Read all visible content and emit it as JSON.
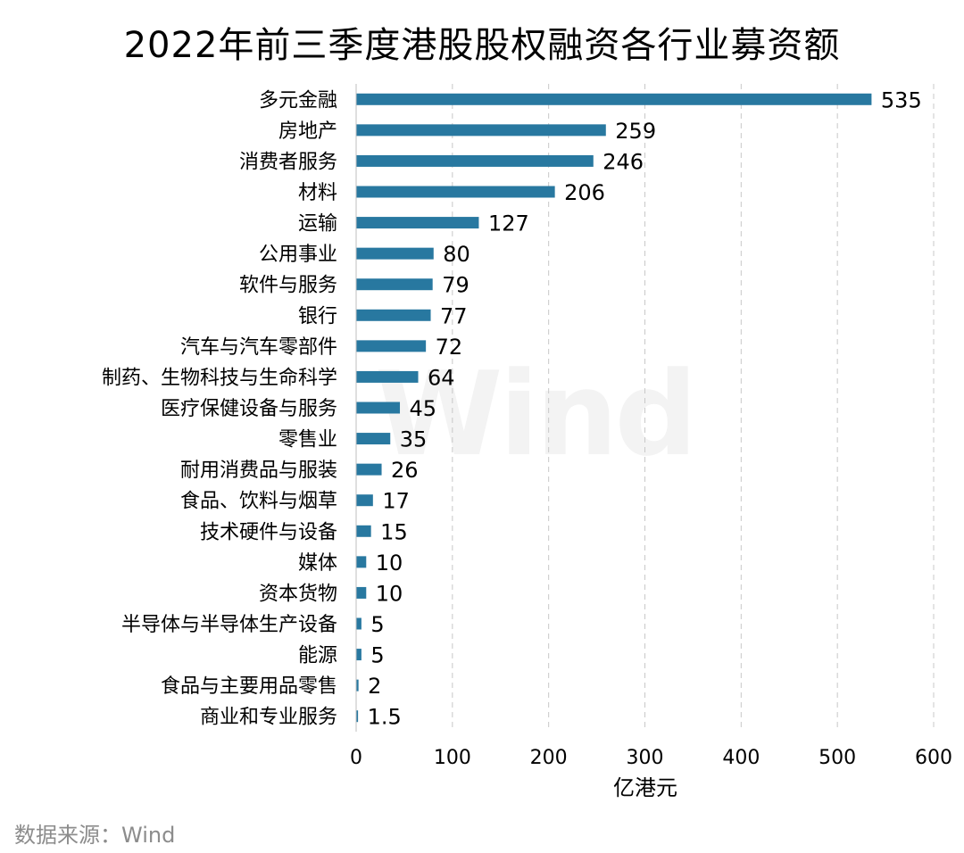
{
  "chart_data": {
    "type": "bar",
    "orientation": "horizontal",
    "title": "2022年前三季度港股股权融资各行业募资额",
    "xlabel": "亿港元",
    "ylabel": "",
    "xlim": [
      0,
      600
    ],
    "xticks": [
      0,
      100,
      200,
      300,
      400,
      500,
      600
    ],
    "grid": "vertical dashed",
    "legend": "none",
    "bar_color": "#2878a0",
    "categories": [
      "多元金融",
      "房地产",
      "消费者服务",
      "材料",
      "运输",
      "公用事业",
      "软件与服务",
      "银行",
      "汽车与汽车零部件",
      "制药、生物科技与生命科学",
      "医疗保健设备与服务",
      "零售业",
      "耐用消费品与服装",
      "食品、饮料与烟草",
      "技术硬件与设备",
      "媒体",
      "资本货物",
      "半导体与半导体生产设备",
      "能源",
      "食品与主要用品零售",
      "商业和专业服务"
    ],
    "values": [
      535,
      259,
      246,
      206,
      127,
      80,
      79,
      77,
      72,
      64,
      45,
      35,
      26,
      17,
      15,
      10,
      10,
      5,
      5,
      2,
      1.5
    ],
    "value_labels": [
      "535",
      "259",
      "246",
      "206",
      "127",
      "80",
      "79",
      "77",
      "72",
      "64",
      "45",
      "35",
      "26",
      "17",
      "15",
      "10",
      "10",
      "5",
      "5",
      "2",
      "1.5"
    ]
  },
  "source": "数据来源：Wind",
  "watermark": "Wind"
}
